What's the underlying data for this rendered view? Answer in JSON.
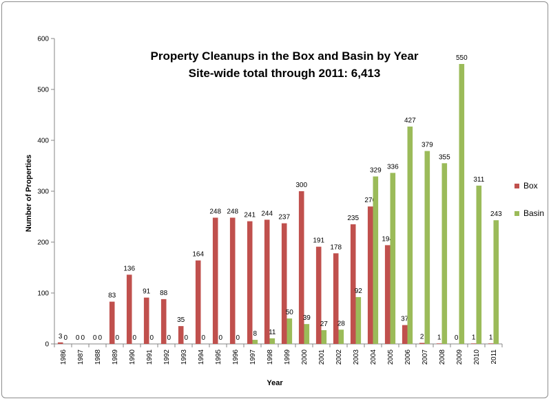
{
  "chart_data": {
    "type": "bar",
    "title": "Property Cleanups in the Box and Basin by Year",
    "subtitle": "Site-wide total through 2011: 6,413",
    "xlabel": "Year",
    "ylabel": "Number of Properties",
    "ylim": [
      0,
      600
    ],
    "yticks": [
      0,
      100,
      200,
      300,
      400,
      500,
      600
    ],
    "grid": false,
    "legend_position": "right",
    "categories": [
      "1986",
      "1987",
      "1988",
      "1989",
      "1990",
      "1991",
      "1992",
      "1993",
      "1994",
      "1995",
      "1996",
      "1997",
      "1998",
      "1999",
      "2000",
      "2001",
      "2002",
      "2003",
      "2004",
      "2005",
      "2006",
      "2007",
      "2008",
      "2009",
      "2010",
      "2011"
    ],
    "series": [
      {
        "name": "Box",
        "color": "#c0504d",
        "values": [
          3,
          0,
          0,
          83,
          136,
          91,
          88,
          35,
          164,
          248,
          248,
          241,
          244,
          237,
          300,
          191,
          178,
          235,
          270,
          194,
          37,
          2,
          1,
          0,
          1,
          1
        ]
      },
      {
        "name": "Basin",
        "color": "#9bbb59",
        "values": [
          0,
          0,
          0,
          0,
          0,
          0,
          0,
          0,
          0,
          0,
          0,
          8,
          11,
          50,
          39,
          27,
          28,
          92,
          329,
          336,
          427,
          379,
          355,
          550,
          311,
          243
        ]
      }
    ]
  }
}
